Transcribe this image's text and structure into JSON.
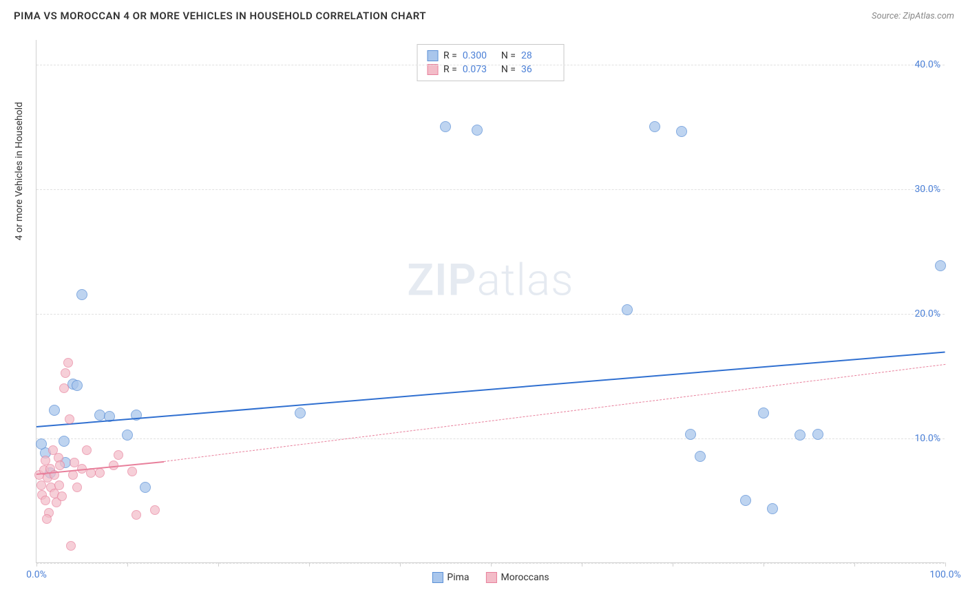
{
  "header": {
    "title": "PIMA VS MOROCCAN 4 OR MORE VEHICLES IN HOUSEHOLD CORRELATION CHART",
    "source": "Source: ZipAtlas.com"
  },
  "watermark": {
    "zip": "ZIP",
    "atlas": "atlas"
  },
  "chart": {
    "type": "scatter",
    "ylabel": "4 or more Vehicles in Household",
    "xlim": [
      0,
      100
    ],
    "ylim": [
      0,
      42
    ],
    "x_ticks": [
      0,
      10,
      20,
      30,
      40,
      50,
      60,
      70,
      80,
      90,
      100
    ],
    "x_tick_labels": {
      "0": "0.0%",
      "100": "100.0%"
    },
    "y_gridlines": [
      0,
      10,
      20,
      30,
      40
    ],
    "y_tick_labels": {
      "10": "10.0%",
      "20": "20.0%",
      "30": "30.0%",
      "40": "40.0%"
    },
    "background_color": "#ffffff",
    "grid_color": "#e0e0e0",
    "axis_color": "#d0d0d0",
    "tick_label_color": "#4a7fd6",
    "series": [
      {
        "name": "Pima",
        "fill_color": "#a9c6ec",
        "stroke_color": "#5a8fd6",
        "marker_radius": 8,
        "marker_opacity": 0.75,
        "trend_color": "#2f6fd0",
        "trend_width": 2.5,
        "trend_dash": "solid",
        "trend_x0": 0,
        "trend_y0": 11.0,
        "trend_x1": 100,
        "trend_y1": 17.0,
        "R": "0.300",
        "N": "28",
        "points": [
          [
            1,
            8.8
          ],
          [
            2,
            12.2
          ],
          [
            3,
            9.7
          ],
          [
            4,
            14.3
          ],
          [
            4.5,
            14.2
          ],
          [
            5,
            21.5
          ],
          [
            1.5,
            7.2
          ],
          [
            3.2,
            8.0
          ],
          [
            7,
            11.8
          ],
          [
            8,
            11.7
          ],
          [
            10,
            10.2
          ],
          [
            11,
            11.8
          ],
          [
            12,
            6.0
          ],
          [
            29,
            12.0
          ],
          [
            45,
            35.0
          ],
          [
            48.5,
            34.7
          ],
          [
            65,
            20.3
          ],
          [
            68,
            35.0
          ],
          [
            71,
            34.6
          ],
          [
            72,
            10.3
          ],
          [
            73,
            8.5
          ],
          [
            78,
            5.0
          ],
          [
            80,
            12.0
          ],
          [
            81,
            4.3
          ],
          [
            84,
            10.2
          ],
          [
            86,
            10.3
          ],
          [
            99.5,
            23.8
          ],
          [
            0.5,
            9.5
          ]
        ]
      },
      {
        "name": "Moroccans",
        "fill_color": "#f3bcc8",
        "stroke_color": "#e87f9b",
        "marker_radius": 7,
        "marker_opacity": 0.7,
        "trend_color": "#e87f9b",
        "trend_width": 2,
        "trend_dash": "solid",
        "trend_ext_dash": "5,5",
        "trend_x0": 0,
        "trend_y0": 7.2,
        "trend_x1": 14,
        "trend_y1": 8.2,
        "trend_ext_x1": 100,
        "trend_ext_y1": 16.0,
        "R": "0.073",
        "N": "36",
        "points": [
          [
            0.3,
            7.0
          ],
          [
            0.5,
            6.2
          ],
          [
            0.6,
            5.4
          ],
          [
            0.8,
            7.4
          ],
          [
            1.0,
            5.0
          ],
          [
            1.0,
            8.2
          ],
          [
            1.2,
            6.8
          ],
          [
            1.4,
            4.0
          ],
          [
            1.5,
            7.5
          ],
          [
            1.6,
            6.0
          ],
          [
            1.8,
            9.0
          ],
          [
            2.0,
            5.5
          ],
          [
            2.0,
            7.0
          ],
          [
            2.2,
            4.8
          ],
          [
            2.4,
            8.4
          ],
          [
            2.5,
            6.2
          ],
          [
            2.6,
            7.8
          ],
          [
            2.8,
            5.3
          ],
          [
            3.0,
            14.0
          ],
          [
            3.2,
            15.2
          ],
          [
            3.5,
            16.0
          ],
          [
            3.6,
            11.5
          ],
          [
            4.0,
            7.0
          ],
          [
            4.2,
            8.0
          ],
          [
            4.5,
            6.0
          ],
          [
            1.1,
            3.5
          ],
          [
            3.8,
            1.3
          ],
          [
            5.0,
            7.5
          ],
          [
            5.5,
            9.0
          ],
          [
            6.0,
            7.2
          ],
          [
            7.0,
            7.2
          ],
          [
            8.5,
            7.8
          ],
          [
            9.0,
            8.6
          ],
          [
            10.5,
            7.3
          ],
          [
            11.0,
            3.8
          ],
          [
            13.0,
            4.2
          ]
        ]
      }
    ],
    "legend": {
      "item1": "Pima",
      "item2": "Moroccans"
    }
  }
}
